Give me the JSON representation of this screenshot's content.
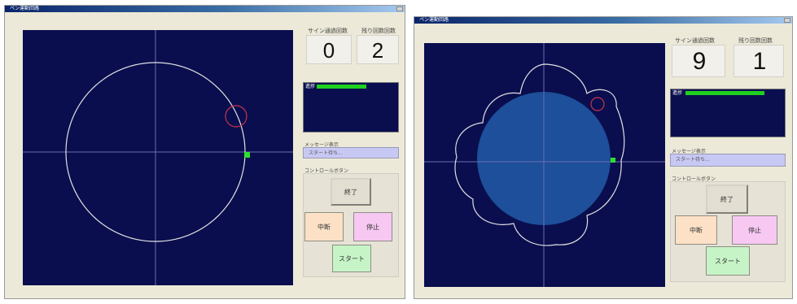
{
  "left": {
    "window_title": "ペン運動回路",
    "counter_label": "サイン通過回数",
    "counter_value": "0",
    "count_label": "残り回数回数",
    "count_value": "2",
    "gauge_label": "進捗",
    "gauge_fill": 0.65,
    "message_label": "メッセージ表示",
    "message_text": "スタート待ち...",
    "control_label": "コントロールボタン",
    "buttons": {
      "end": "終了",
      "pause": "中断",
      "stop": "停止",
      "start": "スタート"
    }
  },
  "right": {
    "window_title": "ペン運動回路",
    "counter_label": "サイン通過回数",
    "counter_value": "9",
    "count_label": "残り回数回数",
    "count_value": "1",
    "gauge_label": "進捗",
    "gauge_fill": 0.82,
    "message_label": "メッセージ表示",
    "message_text": "スタート待ち...",
    "control_label": "コントロールボタン",
    "buttons": {
      "end": "終了",
      "pause": "中断",
      "stop": "停止",
      "start": "スタート"
    }
  },
  "colors": {
    "canvas_bg": "#0a0e4e",
    "axis": "#6a6fb0",
    "trace": "#e0e0e0",
    "small_circle": "#c8344a",
    "marker": "#2ee02e",
    "filled_disc": "#1d4f9a",
    "gauge_bar": "#1fd01f"
  },
  "icons": {
    "window_close": "close-icon"
  }
}
